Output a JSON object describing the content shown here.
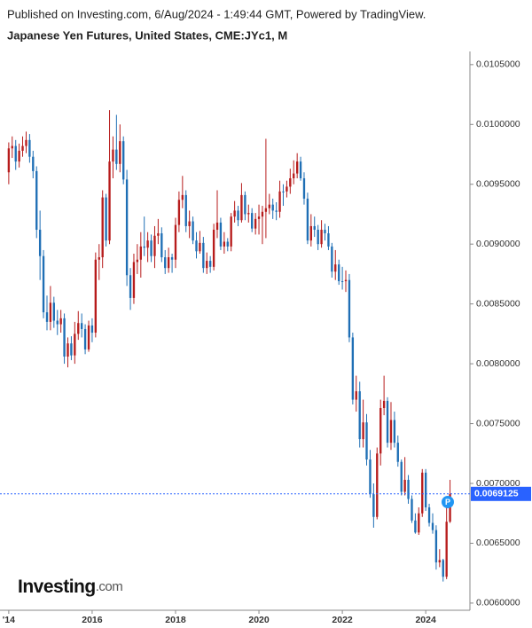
{
  "header": {
    "published": "Published on Investing.com, 6/Aug/2024 - 1:49:44 GMT, Powered by TradingView."
  },
  "logo": {
    "brand": "Investing",
    "suffix": ".com"
  },
  "chart_data": {
    "type": "candlestick",
    "title": "Japanese Yen Futures, United States, CME:JYc1, M",
    "up_color": "#b71c1c",
    "down_color": "#1f6fb5",
    "xlim": [
      2013.79,
      2025.06
    ],
    "xticks": [
      {
        "value": 2014,
        "label": "'14"
      },
      2016,
      2018,
      2020,
      2022,
      2024
    ],
    "ylim": [
      0.00594,
      0.01061
    ],
    "yticks": [
      {
        "value": 0.006,
        "label": "0.0060000"
      },
      {
        "value": 0.0065,
        "label": "0.0065000"
      },
      {
        "value": 0.007,
        "label": "0.0070000"
      },
      {
        "value": 0.0075,
        "label": "0.0075000"
      },
      {
        "value": 0.008,
        "label": "0.0080000"
      },
      {
        "value": 0.0085,
        "label": "0.0085000"
      },
      {
        "value": 0.009,
        "label": "0.0090000"
      },
      {
        "value": 0.0095,
        "label": "0.0095000"
      },
      {
        "value": 0.01,
        "label": "0.0100000"
      },
      {
        "value": 0.0105,
        "label": "0.0105000"
      }
    ],
    "grid": false,
    "price_line": {
      "value": 0.0069125,
      "label": "0.0069125",
      "color": "#2962ff"
    },
    "x": [
      2014,
      2014.083,
      2014.167,
      2014.25,
      2014.333,
      2014.417,
      2014.5,
      2014.583,
      2014.667,
      2014.75,
      2014.833,
      2014.917,
      2015,
      2015.083,
      2015.167,
      2015.25,
      2015.333,
      2015.417,
      2015.5,
      2015.583,
      2015.667,
      2015.75,
      2015.833,
      2015.917,
      2016,
      2016.083,
      2016.167,
      2016.25,
      2016.333,
      2016.417,
      2016.5,
      2016.583,
      2016.667,
      2016.75,
      2016.833,
      2016.917,
      2017,
      2017.083,
      2017.167,
      2017.25,
      2017.333,
      2017.417,
      2017.5,
      2017.583,
      2017.667,
      2017.75,
      2017.833,
      2017.917,
      2018,
      2018.083,
      2018.167,
      2018.25,
      2018.333,
      2018.417,
      2018.5,
      2018.583,
      2018.667,
      2018.75,
      2018.833,
      2018.917,
      2019,
      2019.083,
      2019.167,
      2019.25,
      2019.333,
      2019.417,
      2019.5,
      2019.583,
      2019.667,
      2019.75,
      2019.833,
      2019.917,
      2020,
      2020.083,
      2020.167,
      2020.25,
      2020.333,
      2020.417,
      2020.5,
      2020.583,
      2020.667,
      2020.75,
      2020.833,
      2020.917,
      2021,
      2021.083,
      2021.167,
      2021.25,
      2021.333,
      2021.417,
      2021.5,
      2021.583,
      2021.667,
      2021.75,
      2021.833,
      2021.917,
      2022,
      2022.083,
      2022.167,
      2022.25,
      2022.333,
      2022.417,
      2022.5,
      2022.583,
      2022.667,
      2022.75,
      2022.833,
      2022.917,
      2023,
      2023.083,
      2023.167,
      2023.25,
      2023.333,
      2023.417,
      2023.5,
      2023.583,
      2023.667,
      2023.75,
      2023.833,
      2023.917,
      2024,
      2024.083,
      2024.167,
      2024.25,
      2024.333,
      2024.417,
      2024.5,
      2024.583
    ],
    "open": [
      0.0096,
      0.0098,
      0.00982,
      0.00969,
      0.00978,
      0.00982,
      0.00987,
      0.00973,
      0.00961,
      0.00912,
      0.0089,
      0.00843,
      0.00835,
      0.00851,
      0.00836,
      0.00833,
      0.00838,
      0.00806,
      0.00817,
      0.00807,
      0.00825,
      0.00834,
      0.00829,
      0.00812,
      0.00832,
      0.00826,
      0.00887,
      0.00889,
      0.00939,
      0.00903,
      0.00969,
      0.00979,
      0.00967,
      0.00986,
      0.00954,
      0.00874,
      0.00855,
      0.00885,
      0.00887,
      0.00898,
      0.00897,
      0.00903,
      0.0089,
      0.00907,
      0.00909,
      0.00889,
      0.0088,
      0.00889,
      0.00887,
      0.00916,
      0.00937,
      0.00941,
      0.00915,
      0.00919,
      0.00903,
      0.00894,
      0.00901,
      0.0088,
      0.00886,
      0.00881,
      0.00912,
      0.00918,
      0.00898,
      0.00902,
      0.00898,
      0.00923,
      0.00928,
      0.0092,
      0.00941,
      0.00925,
      0.00926,
      0.00913,
      0.00921,
      0.00923,
      0.00927,
      0.0093,
      0.00933,
      0.00928,
      0.00927,
      0.00944,
      0.00944,
      0.00948,
      0.00955,
      0.00959,
      0.00969,
      0.00955,
      0.00938,
      0.00903,
      0.00915,
      0.00912,
      0.009,
      0.00912,
      0.00909,
      0.00898,
      0.00877,
      0.00883,
      0.00869,
      0.00869,
      0.0087,
      0.00822,
      0.0077,
      0.00777,
      0.00737,
      0.00751,
      0.0072,
      0.00691,
      0.00672,
      0.00725,
      0.00763,
      0.00769,
      0.00734,
      0.00753,
      0.00734,
      0.00718,
      0.00693,
      0.00703,
      0.00687,
      0.00669,
      0.00659,
      0.00675,
      0.00709,
      0.0068,
      0.00667,
      0.00661,
      0.00634,
      0.00636,
      0.00622,
      0.00668
    ],
    "high": [
      0.00985,
      0.0099,
      0.00987,
      0.00984,
      0.0099,
      0.00994,
      0.00992,
      0.00978,
      0.00965,
      0.00928,
      0.00895,
      0.00857,
      0.00865,
      0.00856,
      0.00845,
      0.00845,
      0.00842,
      0.00822,
      0.00823,
      0.00835,
      0.00844,
      0.00842,
      0.00833,
      0.00836,
      0.00838,
      0.00893,
      0.009,
      0.00945,
      0.00942,
      0.01012,
      0.0099,
      0.01008,
      0.01,
      0.0099,
      0.00962,
      0.0088,
      0.00892,
      0.009,
      0.0091,
      0.00923,
      0.0091,
      0.00908,
      0.00915,
      0.00921,
      0.00914,
      0.00895,
      0.00897,
      0.00892,
      0.00922,
      0.00944,
      0.00957,
      0.00945,
      0.00928,
      0.00923,
      0.0091,
      0.00911,
      0.00906,
      0.00893,
      0.0089,
      0.00917,
      0.00945,
      0.00922,
      0.0091,
      0.00905,
      0.00926,
      0.00936,
      0.00932,
      0.00951,
      0.00944,
      0.00933,
      0.0093,
      0.00926,
      0.00933,
      0.00932,
      0.00988,
      0.00942,
      0.00938,
      0.00935,
      0.00953,
      0.0095,
      0.00953,
      0.00963,
      0.0097,
      0.00976,
      0.00973,
      0.0096,
      0.00943,
      0.00925,
      0.00923,
      0.00916,
      0.0092,
      0.00917,
      0.00915,
      0.00901,
      0.00895,
      0.00887,
      0.00881,
      0.00878,
      0.00875,
      0.00826,
      0.0079,
      0.00785,
      0.0077,
      0.00758,
      0.00728,
      0.007,
      0.0073,
      0.0077,
      0.0079,
      0.00772,
      0.00768,
      0.0076,
      0.0074,
      0.0072,
      0.00722,
      0.00707,
      0.0069,
      0.00675,
      0.0068,
      0.00712,
      0.00712,
      0.00683,
      0.00675,
      0.00665,
      0.00645,
      0.00637,
      0.00682,
      0.00703
    ],
    "low": [
      0.0095,
      0.00972,
      0.00962,
      0.00964,
      0.00973,
      0.00976,
      0.00968,
      0.00955,
      0.00905,
      0.0087,
      0.00838,
      0.00828,
      0.00828,
      0.0083,
      0.00824,
      0.00826,
      0.008,
      0.00797,
      0.00803,
      0.008,
      0.0082,
      0.00822,
      0.00808,
      0.0081,
      0.00818,
      0.00822,
      0.0087,
      0.0088,
      0.00898,
      0.009,
      0.00955,
      0.00962,
      0.0096,
      0.0095,
      0.00865,
      0.00845,
      0.0085,
      0.00875,
      0.00872,
      0.0089,
      0.00885,
      0.00885,
      0.0088,
      0.009,
      0.00885,
      0.00875,
      0.00876,
      0.00876,
      0.0088,
      0.0091,
      0.0093,
      0.0091,
      0.00905,
      0.009,
      0.00888,
      0.00892,
      0.00876,
      0.00875,
      0.00876,
      0.00878,
      0.00905,
      0.00895,
      0.00892,
      0.00894,
      0.00894,
      0.00918,
      0.00915,
      0.00918,
      0.0092,
      0.00918,
      0.0091,
      0.00908,
      0.00908,
      0.009,
      0.00905,
      0.00925,
      0.00921,
      0.0092,
      0.00922,
      0.00932,
      0.00939,
      0.00942,
      0.0095,
      0.00955,
      0.00953,
      0.00933,
      0.009,
      0.00898,
      0.00906,
      0.00895,
      0.00897,
      0.00903,
      0.00895,
      0.00872,
      0.0087,
      0.00866,
      0.00862,
      0.0086,
      0.00818,
      0.00766,
      0.0076,
      0.0073,
      0.0073,
      0.00715,
      0.00688,
      0.00663,
      0.0067,
      0.00715,
      0.00757,
      0.0073,
      0.00728,
      0.0073,
      0.00714,
      0.0069,
      0.0069,
      0.00683,
      0.00667,
      0.00658,
      0.00657,
      0.00672,
      0.00677,
      0.00664,
      0.00658,
      0.00628,
      0.0063,
      0.00618,
      0.0062,
      0.00667
    ],
    "close": [
      0.0098,
      0.00982,
      0.00969,
      0.00978,
      0.00982,
      0.00987,
      0.00973,
      0.00961,
      0.00912,
      0.0089,
      0.00843,
      0.00835,
      0.00851,
      0.00836,
      0.00833,
      0.00838,
      0.00806,
      0.00817,
      0.00807,
      0.00825,
      0.00834,
      0.00829,
      0.00812,
      0.00832,
      0.00826,
      0.00887,
      0.00889,
      0.00939,
      0.00903,
      0.00969,
      0.00979,
      0.00967,
      0.00986,
      0.00954,
      0.00874,
      0.00855,
      0.00885,
      0.00887,
      0.00898,
      0.00897,
      0.00903,
      0.0089,
      0.00907,
      0.00909,
      0.00889,
      0.0088,
      0.00889,
      0.00887,
      0.00916,
      0.00937,
      0.00941,
      0.00915,
      0.00919,
      0.00903,
      0.00894,
      0.00901,
      0.0088,
      0.00886,
      0.00881,
      0.00912,
      0.00918,
      0.00898,
      0.00902,
      0.00898,
      0.00923,
      0.00928,
      0.0092,
      0.00941,
      0.00925,
      0.00926,
      0.00913,
      0.00921,
      0.00923,
      0.00927,
      0.0093,
      0.00933,
      0.00928,
      0.00927,
      0.00944,
      0.00944,
      0.00948,
      0.00955,
      0.00959,
      0.00969,
      0.00955,
      0.00938,
      0.00903,
      0.00915,
      0.00912,
      0.009,
      0.00912,
      0.00909,
      0.00898,
      0.00877,
      0.00883,
      0.00869,
      0.00869,
      0.0087,
      0.00822,
      0.0077,
      0.00777,
      0.00737,
      0.00751,
      0.0072,
      0.00691,
      0.00672,
      0.00725,
      0.00763,
      0.00769,
      0.00734,
      0.00753,
      0.00734,
      0.00718,
      0.00693,
      0.00703,
      0.00687,
      0.00669,
      0.00659,
      0.00675,
      0.00709,
      0.0068,
      0.00667,
      0.00661,
      0.00634,
      0.00636,
      0.00622,
      0.00668,
      0.00691
    ]
  }
}
